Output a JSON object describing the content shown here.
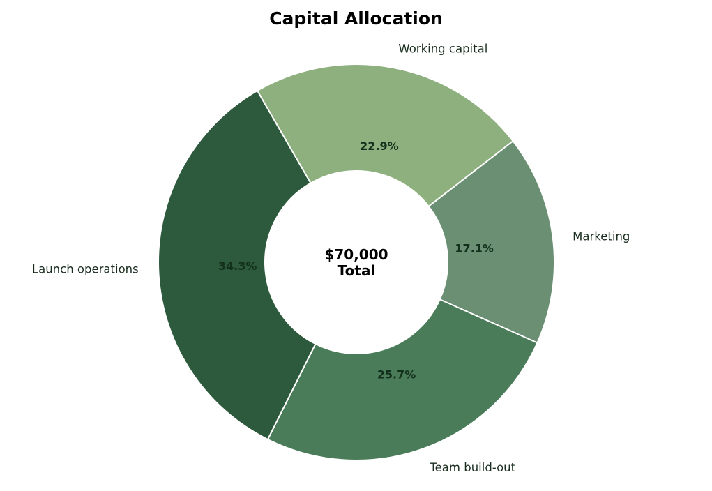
{
  "chart_data": {
    "type": "pie",
    "subtype": "donut",
    "title": "Capital Allocation",
    "center_label": [
      "$70,000",
      "Total"
    ],
    "start_angle_deg": 120,
    "direction": "clockwise",
    "slices": [
      {
        "label": "Working capital",
        "value": 16000,
        "percent_label": "22.9%",
        "color": "#8db07e"
      },
      {
        "label": "Marketing",
        "value": 12000,
        "percent_label": "17.1%",
        "color": "#6a8f72"
      },
      {
        "label": "Team build-out",
        "value": 18000,
        "percent_label": "25.7%",
        "color": "#4a7c59"
      },
      {
        "label": "Launch operations",
        "value": 24000,
        "percent_label": "34.3%",
        "color": "#2d5a3d"
      }
    ]
  }
}
